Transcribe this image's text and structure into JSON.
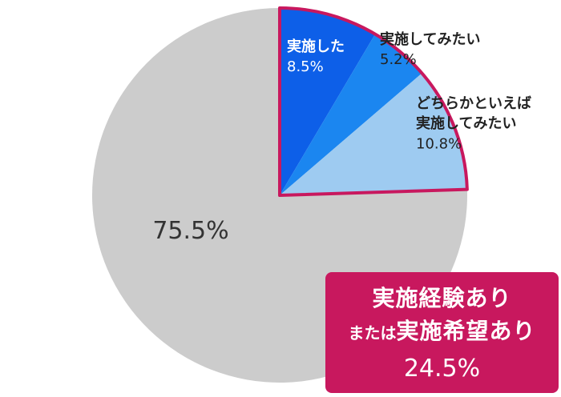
{
  "chart_data": {
    "type": "pie",
    "slices": [
      {
        "label": "実施した",
        "value": 8.5,
        "value_label": "8.5%",
        "color": "#0d5fe8",
        "text_color": "#ffffff"
      },
      {
        "label": "実施してみたい",
        "value": 5.2,
        "value_label": "5.2%",
        "color": "#1b86f0",
        "text_color": "#222222"
      },
      {
        "label": "どちらかといえば\n実施してみたい",
        "value": 10.8,
        "value_label": "10.8%",
        "color": "#9ecbf1",
        "text_color": "#222222"
      },
      {
        "label": "",
        "value": 75.5,
        "value_label": "75.5%",
        "color": "#cccccc",
        "text_color": "#333333"
      }
    ],
    "highlight_color": "#c8185e",
    "start": "12 o'clock, clockwise"
  },
  "callout": {
    "line1": "実施経験あり",
    "line2_small": "または",
    "line2_big": "実施希望あり",
    "line3": "24.5%",
    "color": "#c8185e"
  }
}
